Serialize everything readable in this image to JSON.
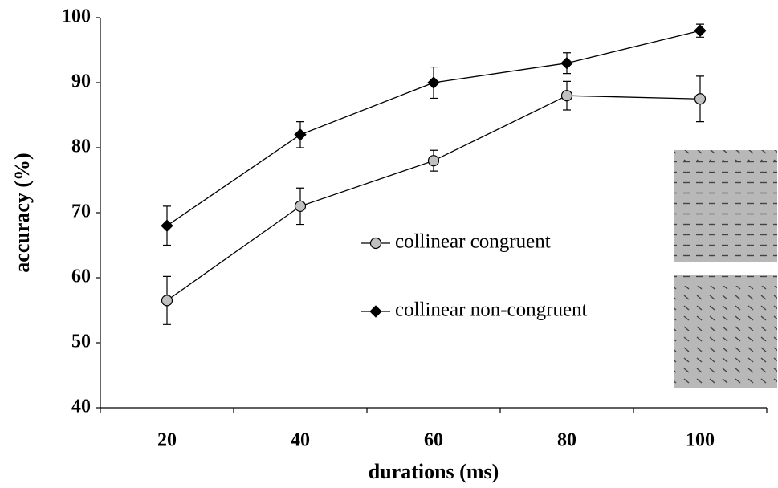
{
  "chart_data": {
    "type": "line",
    "x_label": "durations (ms)",
    "y_label": "accuracy (%)",
    "categories": [
      "20",
      "40",
      "60",
      "80",
      "100"
    ],
    "series": [
      {
        "name": "collinear congruent",
        "color": "#c0c0c0",
        "marker": "circle",
        "values": [
          56.5,
          71,
          78,
          88,
          87.5
        ],
        "errors": [
          3.7,
          2.8,
          1.6,
          2.2,
          3.5
        ]
      },
      {
        "name": "collinear non-congruent",
        "color": "#000000",
        "marker": "diamond",
        "values": [
          68,
          82,
          90,
          93,
          98
        ],
        "errors": [
          3,
          2,
          2.4,
          1.6,
          1
        ]
      }
    ],
    "ylim": [
      40,
      100
    ],
    "yticks": [
      40,
      50,
      60,
      70,
      80,
      90,
      100
    ]
  }
}
